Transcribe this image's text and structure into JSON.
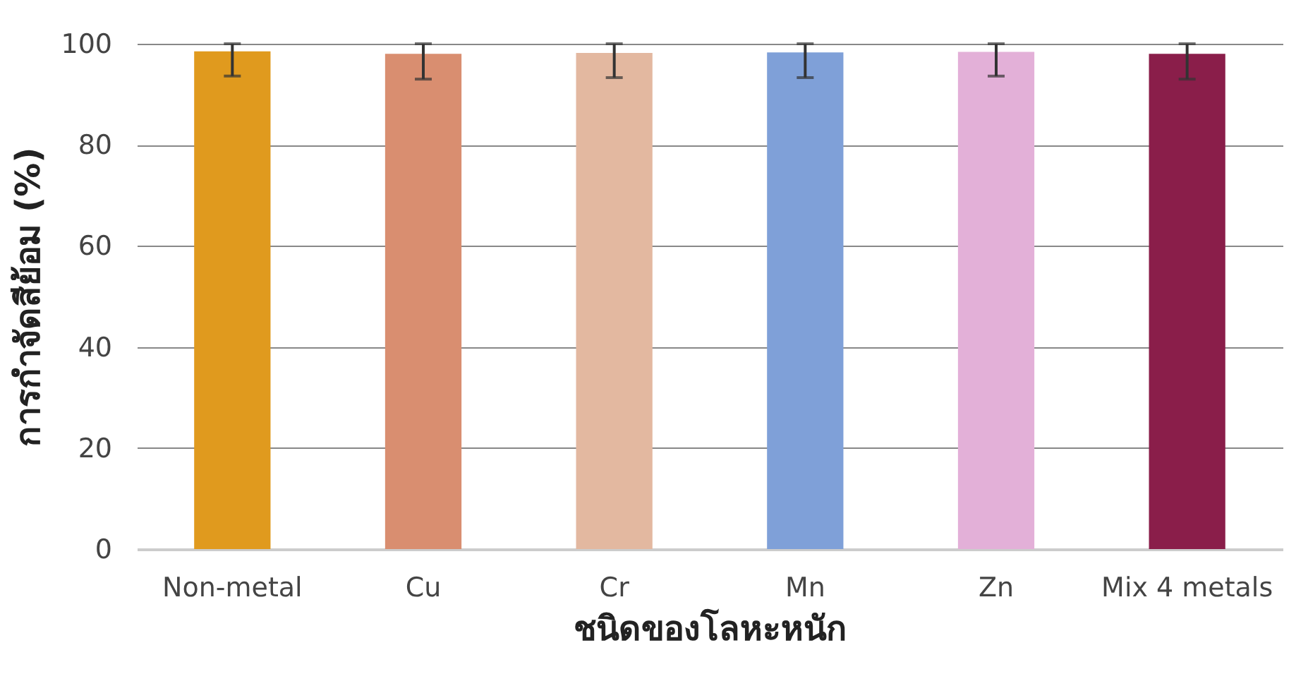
{
  "chart_data": {
    "type": "bar",
    "xlabel": "ชนิดของโลหะหนัก",
    "ylabel": "การกำจัดสีย้อม (%)",
    "categories": [
      "Non-metal",
      "Cu",
      "Cr",
      "Mn",
      "Zn",
      "Mix 4 metals"
    ],
    "values": [
      98.5,
      98.0,
      98.2,
      98.3,
      98.4,
      98.0
    ],
    "colors": [
      "#e09a1e",
      "#d98e70",
      "#e3b8a0",
      "#7fa0d8",
      "#e3b0d8",
      "#8a1e4a"
    ],
    "errors": [
      [
        93.6,
        100
      ],
      [
        93.0,
        100
      ],
      [
        93.3,
        100
      ],
      [
        93.3,
        100
      ],
      [
        93.6,
        100
      ],
      [
        93.0,
        100
      ]
    ],
    "ylim": [
      0,
      100
    ],
    "yticks": [
      0,
      20,
      40,
      60,
      80,
      100
    ],
    "grid": "y"
  }
}
